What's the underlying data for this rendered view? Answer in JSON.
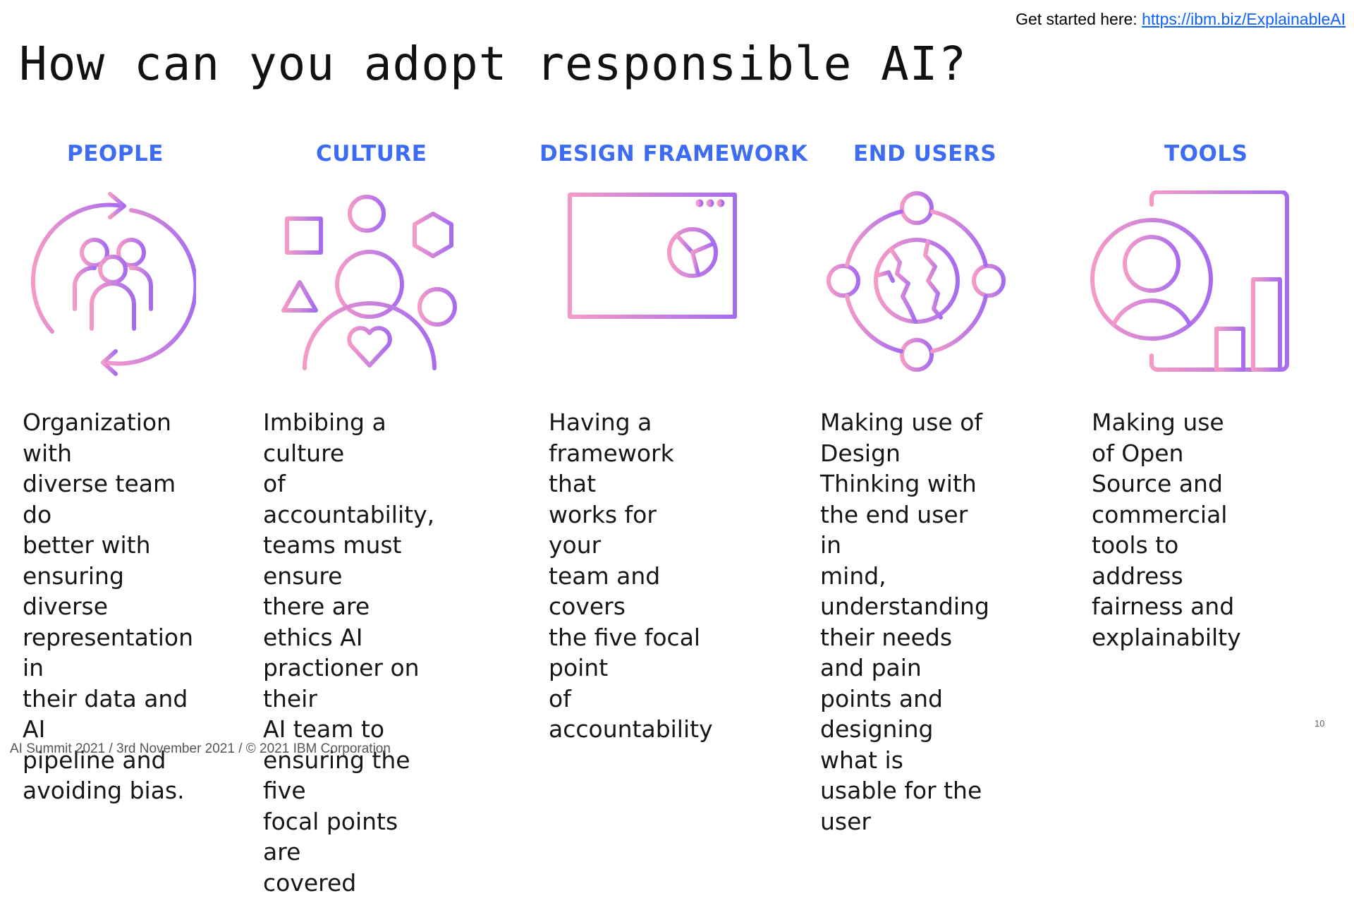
{
  "header": {
    "link_prefix": "Get started here:",
    "link_text": "https://ibm.biz/ExplainableAI"
  },
  "title": "How can you adopt responsible AI?",
  "pillars": [
    {
      "heading": "PEOPLE",
      "icon": "people-cycle-icon",
      "text": "Organization with\ndiverse team do\nbetter with\nensuring diverse\nrepresentation in\ntheir data and AI\npipeline and\navoiding bias."
    },
    {
      "heading": "CULTURE",
      "icon": "culture-person-shapes-icon",
      "text": "Imbibing a culture\nof accountability,\nteams must ensure\nthere are ethics AI\npractioner on their\nAI team to\nensuring the five\nfocal points are\ncovered"
    },
    {
      "heading": "DESIGN FRAMEWORK",
      "icon": "browser-window-chart-icon",
      "text": "Having a\nframework that\nworks for your\nteam and covers\nthe five focal point\nof accountability"
    },
    {
      "heading": "END USERS",
      "icon": "globe-orbit-icon",
      "text": "Making use of\nDesign Thinking with\nthe end user in\nmind, understanding\ntheir needs and pain\npoints and\ndesigning what is\nusable for the user"
    },
    {
      "heading": "TOOLS",
      "icon": "profile-dashboard-icon",
      "text": "Making use of Open\nSource and\ncommercial tools to\naddress fairness and\nexplainabilty"
    }
  ],
  "footer": "AI Summit 2021 / 3rd November 2021 / © 2021 IBM Corporation",
  "page_number": "10",
  "colors": {
    "heading": "#3d6cf3",
    "gradient_start": "#f48fc6",
    "gradient_end": "#a56ef0",
    "link": "#0f62fe"
  }
}
